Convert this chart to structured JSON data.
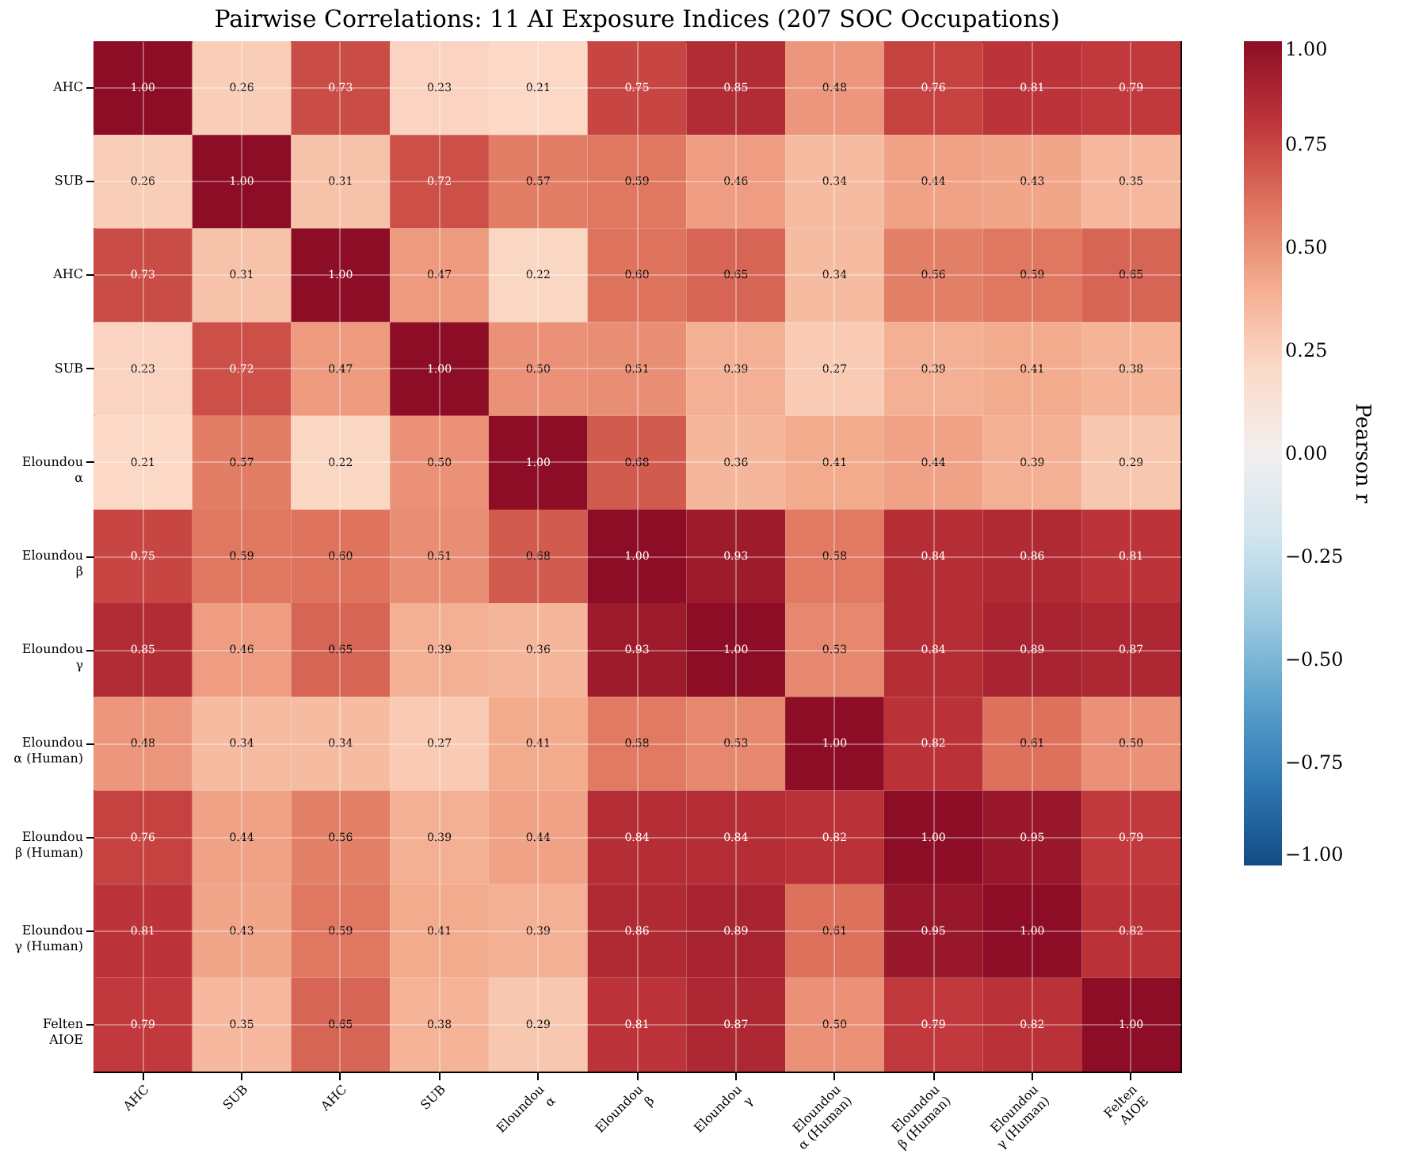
{
  "chart_data": {
    "type": "heatmap",
    "title": "Pairwise Correlations: 11 AI Exposure Indices (207 SOC Occupations)",
    "categories": [
      "AHC",
      "SUB",
      "AHC",
      "SUB",
      "Eloundou α",
      "Eloundou β",
      "Eloundou γ",
      "Eloundou α (Human)",
      "Eloundou β (Human)",
      "Eloundou γ (Human)",
      "Felten AIOE"
    ],
    "y_categories": [
      "AHC",
      "SUB",
      "AHC",
      "SUB",
      "Eloundou α",
      "Eloundou β",
      "Eloundou γ",
      "Eloundou α (Human)",
      "Eloundou β (Human)",
      "Eloundou γ (Human)",
      "Felten AIOE"
    ],
    "cells": [
      [
        1.0,
        0.26,
        0.73,
        0.23,
        0.21,
        0.75,
        0.85,
        0.48,
        0.76,
        0.81,
        0.79
      ],
      [
        0.26,
        1.0,
        0.31,
        0.72,
        0.57,
        0.59,
        0.46,
        0.34,
        0.44,
        0.43,
        0.35
      ],
      [
        0.73,
        0.31,
        1.0,
        0.47,
        0.22,
        0.6,
        0.65,
        0.34,
        0.56,
        0.59,
        0.65
      ],
      [
        0.23,
        0.72,
        0.47,
        1.0,
        0.5,
        0.51,
        0.39,
        0.27,
        0.39,
        0.41,
        0.38
      ],
      [
        0.21,
        0.57,
        0.22,
        0.5,
        1.0,
        0.68,
        0.36,
        0.41,
        0.44,
        0.39,
        0.29
      ],
      [
        0.75,
        0.59,
        0.6,
        0.51,
        0.68,
        1.0,
        0.93,
        0.58,
        0.84,
        0.86,
        0.81
      ],
      [
        0.85,
        0.46,
        0.65,
        0.39,
        0.36,
        0.93,
        1.0,
        0.53,
        0.84,
        0.89,
        0.87
      ],
      [
        0.48,
        0.34,
        0.34,
        0.27,
        0.41,
        0.58,
        0.53,
        1.0,
        0.82,
        0.61,
        0.5
      ],
      [
        0.76,
        0.44,
        0.56,
        0.39,
        0.44,
        0.84,
        0.84,
        0.82,
        1.0,
        0.95,
        0.79
      ],
      [
        0.81,
        0.43,
        0.59,
        0.41,
        0.39,
        0.86,
        0.89,
        0.61,
        0.95,
        1.0,
        0.82
      ],
      [
        0.79,
        0.35,
        0.65,
        0.38,
        0.29,
        0.81,
        0.87,
        0.5,
        0.79,
        0.82,
        1.0
      ]
    ],
    "cell_labels": [
      [
        "1.00",
        "0.26",
        "0.73",
        "0.23",
        "0.21",
        "0.75",
        "0.85",
        "0.48",
        "0.76",
        "0.81",
        "0.79"
      ],
      [
        "0.26",
        "1.00",
        "0.31",
        "0.72",
        "0.57",
        "0.59",
        "0.46",
        "0.34",
        "0.44",
        "0.43",
        "0.35"
      ],
      [
        "0.73",
        "0.31",
        "1.00",
        "0.47",
        "0.22",
        "0.60",
        "0.65",
        "0.34",
        "0.56",
        "0.59",
        "0.65"
      ],
      [
        "0.23",
        "0.72",
        "0.47",
        "1.00",
        "0.50",
        "0.51",
        "0.39",
        "0.27",
        "0.39",
        "0.41",
        "0.38"
      ],
      [
        "0.21",
        "0.57",
        "0.22",
        "0.50",
        "1.00",
        "0.68",
        "0.36",
        "0.41",
        "0.44",
        "0.39",
        "0.29"
      ],
      [
        "0.75",
        "0.59",
        "0.60",
        "0.51",
        "0.68",
        "1.00",
        "0.93",
        "0.58",
        "0.84",
        "0.86",
        "0.81"
      ],
      [
        "0.85",
        "0.46",
        "0.65",
        "0.39",
        "0.36",
        "0.93",
        "1.00",
        "0.53",
        "0.84",
        "0.89",
        "0.87"
      ],
      [
        "0.48",
        "0.34",
        "0.34",
        "0.27",
        "0.41",
        "0.58",
        "0.53",
        "1.00",
        "0.82",
        "0.61",
        "0.50"
      ],
      [
        "0.76",
        "0.44",
        "0.56",
        "0.39",
        "0.44",
        "0.84",
        "0.84",
        "0.82",
        "1.00",
        "0.95",
        "0.79"
      ],
      [
        "0.81",
        "0.43",
        "0.59",
        "0.41",
        "0.39",
        "0.86",
        "0.89",
        "0.61",
        "0.95",
        "1.00",
        "0.82"
      ],
      [
        "0.79",
        "0.35",
        "0.65",
        "0.38",
        "0.29",
        "0.81",
        "0.87",
        "0.50",
        "0.79",
        "0.82",
        "1.00"
      ]
    ],
    "clabel": "Pearson r",
    "clim": [
      -1,
      1
    ],
    "cticks": [
      {
        "value": -1,
        "label": "−1.00"
      },
      {
        "value": -0.75,
        "label": "−0.75"
      },
      {
        "value": -0.5,
        "label": "−0.50"
      },
      {
        "value": -0.25,
        "label": "−0.25"
      },
      {
        "value": 0,
        "label": "0.00"
      },
      {
        "value": 0.25,
        "label": "0.25"
      },
      {
        "value": 0.5,
        "label": "0.50"
      },
      {
        "value": 0.75,
        "label": "0.75"
      },
      {
        "value": 1,
        "label": "1.00"
      }
    ],
    "grid": true
  }
}
